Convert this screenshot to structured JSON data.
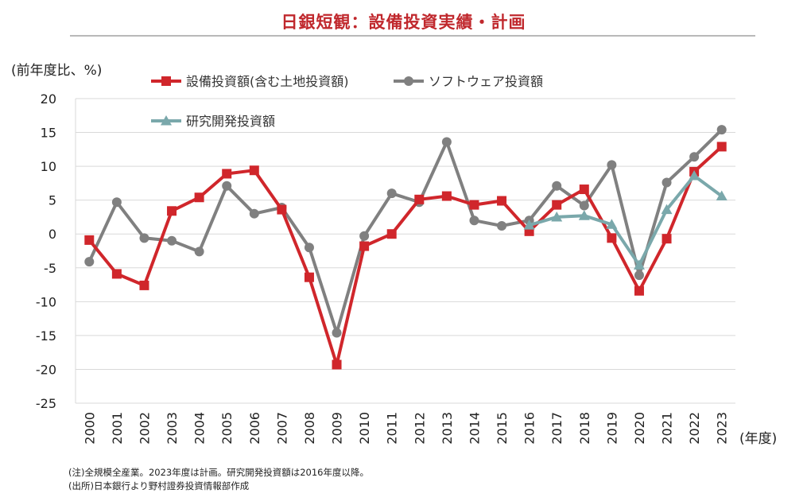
{
  "title": "日銀短観：設備投資実績・計画",
  "ylabel": "(前年度比、%)",
  "xlabel": "(年度)",
  "footnotes": [
    "(注)全規模全産業。2023年度は計画。研究開発投資額は2016年度以降。",
    "(出所)日本銀行より野村證券投資情報部作成"
  ],
  "chart_data": {
    "type": "line",
    "title": "日銀短観：設備投資実績・計画",
    "xlabel": "(年度)",
    "ylabel": "(前年度比、%)",
    "ylim": [
      -25,
      20
    ],
    "yticks": [
      20,
      15,
      10,
      5,
      0,
      -5,
      -10,
      -15,
      -20,
      -25
    ],
    "grid": true,
    "legend_position": "top",
    "categories": [
      "2000",
      "2001",
      "2002",
      "2003",
      "2004",
      "2005",
      "2006",
      "2007",
      "2008",
      "2009",
      "2010",
      "2011",
      "2012",
      "2013",
      "2014",
      "2015",
      "2016",
      "2017",
      "2018",
      "2019",
      "2020",
      "2021",
      "2022",
      "2023"
    ],
    "series": [
      {
        "name": "設備投資額(含む土地投資額)",
        "color": "#d0262b",
        "marker": "square",
        "values": [
          -0.9,
          -5.9,
          -7.6,
          3.4,
          5.4,
          8.9,
          9.4,
          3.6,
          -6.4,
          -19.3,
          -1.8,
          0.0,
          5.1,
          5.6,
          4.3,
          4.9,
          0.4,
          4.3,
          6.6,
          -0.6,
          -8.4,
          -0.7,
          9.2,
          12.9
        ]
      },
      {
        "name": "ソフトウェア投資額",
        "color": "#808080",
        "marker": "circle",
        "values": [
          -4.1,
          4.7,
          -0.6,
          -1.0,
          -2.6,
          7.1,
          3.0,
          3.9,
          -2.0,
          -14.6,
          -0.3,
          6.0,
          4.7,
          13.6,
          2.0,
          1.2,
          2.0,
          7.1,
          4.2,
          10.2,
          -6.1,
          7.6,
          11.4,
          15.4
        ]
      },
      {
        "name": "研究開発投資額",
        "color": "#7aa8ab",
        "marker": "triangle",
        "values": [
          null,
          null,
          null,
          null,
          null,
          null,
          null,
          null,
          null,
          null,
          null,
          null,
          null,
          null,
          null,
          null,
          1.3,
          2.5,
          2.7,
          1.4,
          -4.6,
          3.6,
          8.6,
          5.6
        ]
      }
    ]
  }
}
